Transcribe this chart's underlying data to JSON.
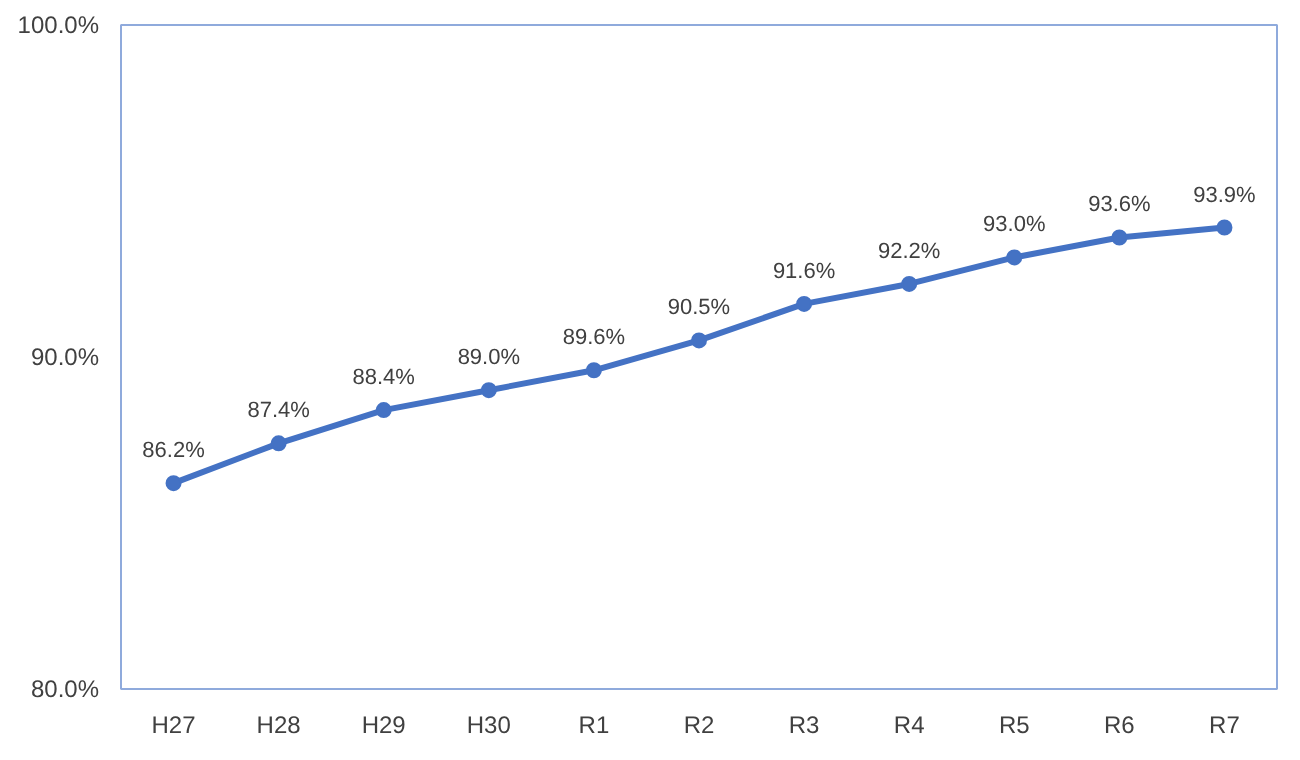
{
  "chart_data": {
    "type": "line",
    "categories": [
      "H27",
      "H28",
      "H29",
      "H30",
      "R1",
      "R2",
      "R3",
      "R4",
      "R5",
      "R6",
      "R7"
    ],
    "series": [
      {
        "color": "#4472c4",
        "values": [
          86.2,
          87.4,
          88.4,
          89.0,
          89.6,
          90.5,
          91.6,
          92.2,
          93.0,
          93.6,
          93.9
        ],
        "value_labels": [
          "86.2%",
          "87.4%",
          "88.4%",
          "89.0%",
          "89.6%",
          "90.5%",
          "91.6%",
          "92.2%",
          "93.0%",
          "93.6%",
          "93.9%"
        ]
      }
    ],
    "ylim": [
      80,
      100
    ],
    "yticks": [
      {
        "value": 80,
        "label": "80.0%"
      },
      {
        "value": 90,
        "label": "90.0%"
      },
      {
        "value": 100,
        "label": "100.0%"
      }
    ],
    "grid": false,
    "marker": "circle",
    "line_style": "solid"
  }
}
